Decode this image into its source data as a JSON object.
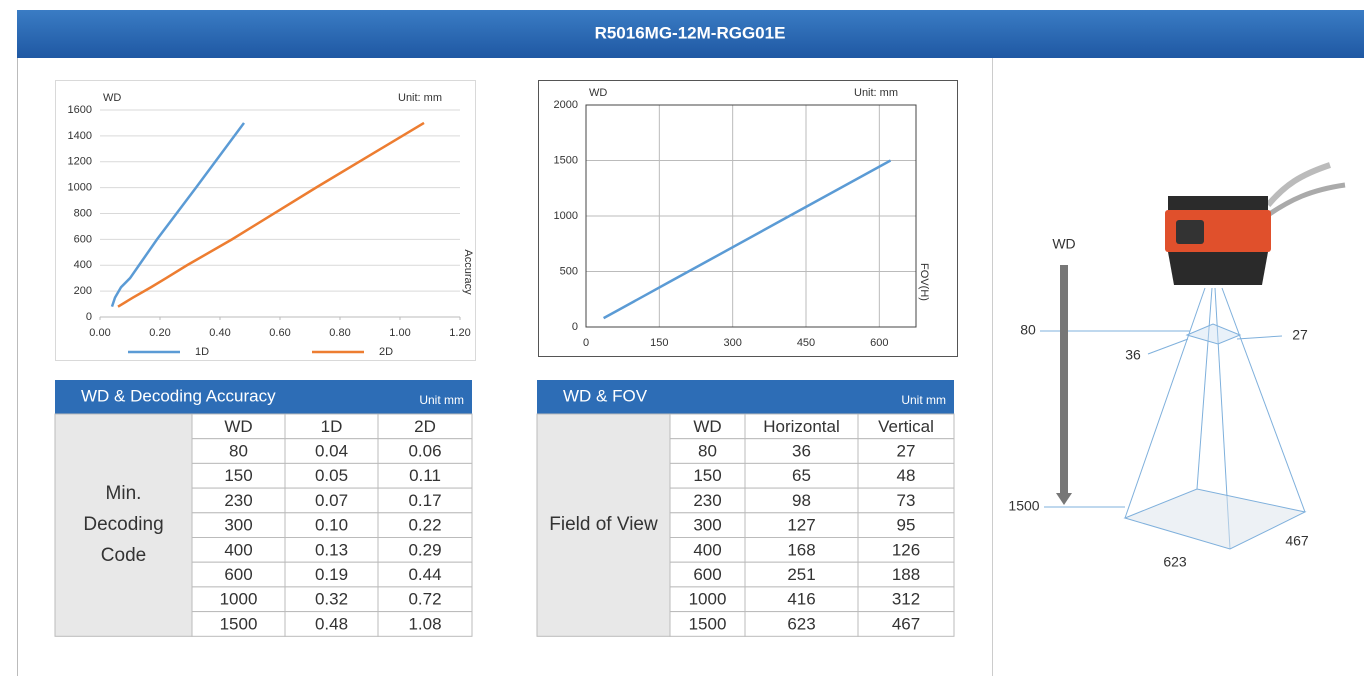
{
  "header": {
    "title": "R5016MG-12M-RGG01E"
  },
  "chart_data": [
    {
      "type": "line",
      "y_label": "WD",
      "unit": "Unit: mm",
      "x_label": "Accuracy",
      "xlim": [
        0,
        1.2
      ],
      "ylim": [
        0,
        1600
      ],
      "xticks": [
        {
          "value": 0,
          "label": "0.00"
        },
        {
          "value": 0.2,
          "label": "0.20"
        },
        {
          "value": 0.4,
          "label": "0.40"
        },
        {
          "value": 0.6,
          "label": "0.60"
        },
        {
          "value": 0.8,
          "label": "0.80"
        },
        {
          "value": 1.0,
          "label": "1.00"
        },
        {
          "value": 1.2,
          "label": "1.20"
        }
      ],
      "yticks": [
        0,
        200,
        400,
        600,
        800,
        1000,
        1200,
        1400,
        1600
      ],
      "grid": "y",
      "frame": false,
      "legend": "bottom",
      "series": [
        {
          "name": "1D",
          "color": "#5b9bd5",
          "x": [
            0.04,
            0.05,
            0.07,
            0.1,
            0.13,
            0.19,
            0.32,
            0.48
          ],
          "values": [
            80,
            150,
            230,
            300,
            400,
            600,
            1000,
            1500
          ]
        },
        {
          "name": "2D",
          "color": "#ed7d31",
          "x": [
            0.06,
            0.11,
            0.17,
            0.22,
            0.29,
            0.44,
            0.72,
            1.08
          ],
          "values": [
            80,
            150,
            230,
            300,
            400,
            600,
            1000,
            1500
          ]
        }
      ]
    },
    {
      "type": "line",
      "y_label": "WD",
      "unit": "Unit: mm",
      "x_label": "FOV(H)",
      "xlim": [
        0,
        675
      ],
      "ylim": [
        0,
        2000
      ],
      "xticks": [
        0,
        150,
        300,
        450,
        600
      ],
      "yticks": [
        0,
        500,
        1000,
        1500,
        2000
      ],
      "grid": "both",
      "frame": true,
      "series": [
        {
          "color": "#5b9bd5",
          "x": [
            36,
            65,
            98,
            127,
            168,
            251,
            416,
            623
          ],
          "values": [
            80,
            150,
            230,
            300,
            400,
            600,
            1000,
            1500
          ]
        }
      ]
    }
  ],
  "tables": [
    {
      "title": "WD & Decoding Accuracy",
      "unit": "Unit mm",
      "row_group": [
        "Min.",
        "Decoding",
        "Code"
      ],
      "header": [
        "WD",
        "1D",
        "2D"
      ],
      "rows": [
        [
          "80",
          "0.04",
          "0.06"
        ],
        [
          "150",
          "0.05",
          "0.11"
        ],
        [
          "230",
          "0.07",
          "0.17"
        ],
        [
          "300",
          "0.10",
          "0.22"
        ],
        [
          "400",
          "0.13",
          "0.29"
        ],
        [
          "600",
          "0.19",
          "0.44"
        ],
        [
          "1000",
          "0.32",
          "0.72"
        ],
        [
          "1500",
          "0.48",
          "1.08"
        ]
      ]
    },
    {
      "title": "WD & FOV",
      "unit": "Unit mm",
      "row_group": [
        "Field of View"
      ],
      "header": [
        "WD",
        "Horizontal",
        "Vertical"
      ],
      "rows": [
        [
          "80",
          "36",
          "27"
        ],
        [
          "150",
          "65",
          "48"
        ],
        [
          "230",
          "98",
          "73"
        ],
        [
          "300",
          "127",
          "95"
        ],
        [
          "400",
          "168",
          "126"
        ],
        [
          "600",
          "251",
          "188"
        ],
        [
          "1000",
          "416",
          "312"
        ],
        [
          "1500",
          "623",
          "467"
        ]
      ]
    }
  ],
  "diagram": {
    "wd": "WD",
    "near_wd": "80",
    "near_h": "36",
    "near_v": "27",
    "far_wd": "1500",
    "far_h": "623",
    "far_v": "467"
  }
}
